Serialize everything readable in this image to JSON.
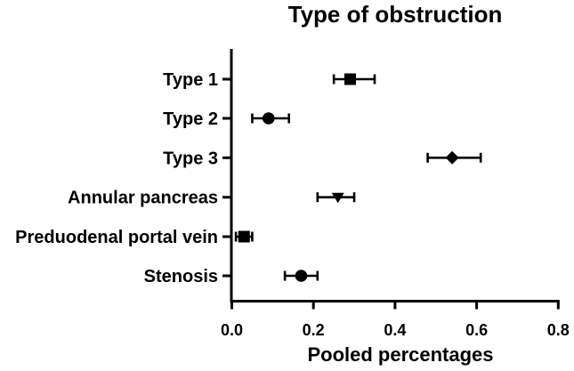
{
  "chart_data": {
    "type": "scatter",
    "subtype": "forest-plot",
    "title": "Type of obstruction",
    "xlabel": "Pooled percentages",
    "ylabel": "",
    "xlim": [
      0,
      0.8
    ],
    "xticks": [
      {
        "value": 0.0,
        "label": "0.0"
      },
      {
        "value": 0.2,
        "label": "0.2"
      },
      {
        "value": 0.4,
        "label": "0.4"
      },
      {
        "value": 0.6,
        "label": "0.6"
      },
      {
        "value": 0.8,
        "label": "0.8"
      }
    ],
    "grid": false,
    "legend": "none",
    "marker_color": "#000000",
    "rows": [
      {
        "label": "Type 1",
        "marker": "square",
        "value": 0.29,
        "ci_low": 0.25,
        "ci_high": 0.35
      },
      {
        "label": "Type 2",
        "marker": "circle",
        "value": 0.09,
        "ci_low": 0.05,
        "ci_high": 0.14
      },
      {
        "label": "Type 3",
        "marker": "diamond",
        "value": 0.54,
        "ci_low": 0.48,
        "ci_high": 0.61
      },
      {
        "label": "Annular pancreas",
        "marker": "triangle-down",
        "value": 0.26,
        "ci_low": 0.21,
        "ci_high": 0.3
      },
      {
        "label": "Preduodenal portal vein",
        "marker": "square",
        "value": 0.03,
        "ci_low": 0.01,
        "ci_high": 0.05
      },
      {
        "label": "Stenosis",
        "marker": "circle",
        "value": 0.17,
        "ci_low": 0.13,
        "ci_high": 0.21
      }
    ]
  }
}
